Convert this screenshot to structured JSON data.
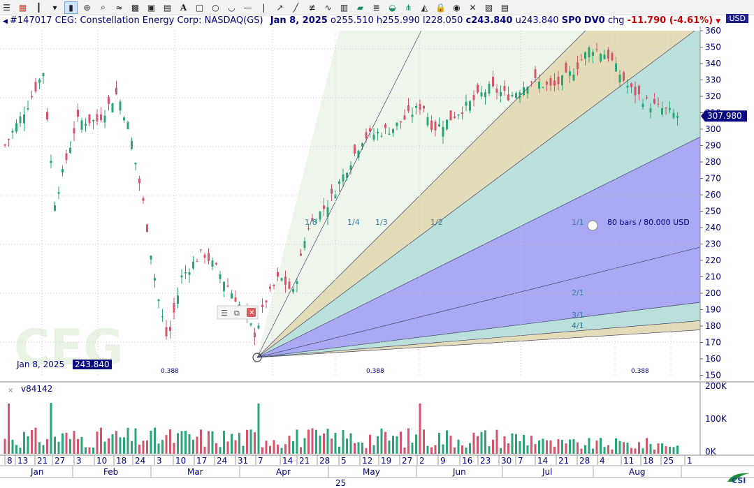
{
  "toolbar": {
    "icons": [
      "menu-icon",
      "colors-icon",
      "bar-chart-icon",
      "dropdown-icon",
      "line-chart-icon",
      "crosshair-icon",
      "zoom-icon",
      "wave-icon",
      "grid-icon",
      "chart-window-icon",
      "chart-window2-icon",
      "text-tool-icon",
      "rectangle-icon",
      "ellipse-icon",
      "arc-icon",
      "hline-icon",
      "vline-icon",
      "arrow-icon",
      "trendline-icon",
      "fib-icon",
      "wave2-icon",
      "bars-icon",
      "channel-icon",
      "lines-icon",
      "gann-fan-icon",
      "pitchfork-icon",
      "fan2-icon",
      "lock-icon",
      "eye-icon",
      "delete-icon",
      "camera-icon",
      "print-icon"
    ],
    "text_tool_label": "A"
  },
  "info": {
    "symbol": "#147017 CEG: Constellation Energy Corp: NASDAQ(GS)",
    "date": "Jan  8, 2025",
    "open": "o255.510",
    "high": "h255.990",
    "low": "l228.050",
    "close": "c243.840",
    "u": "u243.840",
    "sp": "SP0",
    "dv": "DV0",
    "chg_label": "chg",
    "chg_value": "-11.790 (-4.61%)",
    "currency": "USD"
  },
  "cursor_readout": {
    "date": "Jan  8, 2025",
    "value": "243.840"
  },
  "price_label": "307.980",
  "watermark": "CEG",
  "gann": {
    "labels_top": [
      "1/8",
      "1/4",
      "1/3",
      "1/2",
      "1/1"
    ],
    "labels_bottom": [
      "2/1",
      "3/1",
      "4/1"
    ],
    "annotation": "80 bars / 80.000 USD"
  },
  "fib_markers": [
    "0.388",
    "0.388",
    "0.388"
  ],
  "volume": {
    "label": "v84142",
    "axis": [
      "200K",
      "100K",
      "0K"
    ]
  },
  "colors": {
    "up": "#2aa676",
    "down": "#d9536a",
    "axis_text": "#000080",
    "price_badge": "#0a0a80",
    "fan_purple": "#a8a8f4",
    "fan_teal": "#b9e0da",
    "fan_tan": "#e4dcb8",
    "fan_light": "#eef5ea"
  },
  "chart_data": {
    "type": "candlestick",
    "price_axis": {
      "ticks": [
        150,
        160,
        170,
        180,
        190,
        200,
        210,
        220,
        230,
        240,
        250,
        260,
        270,
        280,
        290,
        300,
        310,
        320,
        330,
        340,
        350,
        360
      ],
      "range": [
        150,
        360
      ]
    },
    "day_ticks": [
      "8",
      "13",
      "21",
      "27",
      "3",
      "10",
      "18",
      "24",
      "3",
      "10",
      "17",
      "24",
      "31",
      "7",
      "14",
      "21",
      "28",
      "5",
      "12",
      "19",
      "27",
      "2",
      "9",
      "16",
      "23",
      "30",
      "7",
      "14",
      "21",
      "28",
      "4",
      "11",
      "18",
      "25",
      "1"
    ],
    "month_labels": [
      "Jan",
      "Feb",
      "Mar",
      "Apr",
      "May",
      "Jun",
      "Jul",
      "Aug"
    ],
    "year_label": "25",
    "last_price": 307.98
  }
}
